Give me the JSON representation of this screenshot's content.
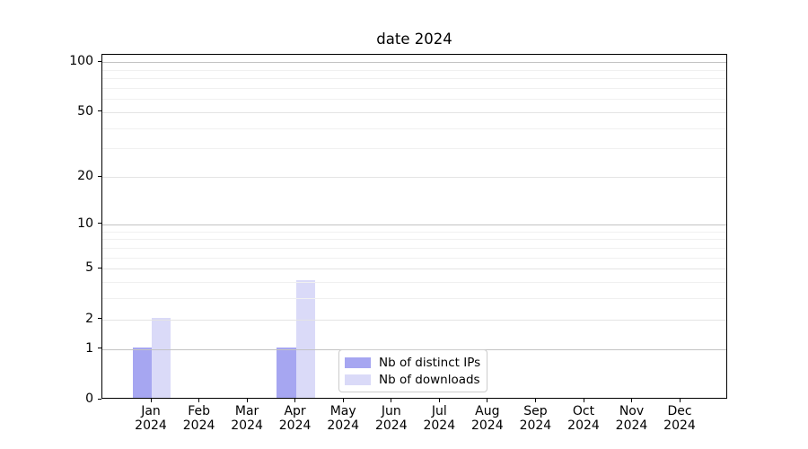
{
  "chart_data": {
    "type": "bar",
    "title": "date 2024",
    "months": [
      "Jan",
      "Feb",
      "Mar",
      "Apr",
      "May",
      "Jun",
      "Jul",
      "Aug",
      "Sep",
      "Oct",
      "Nov",
      "Dec"
    ],
    "year_label": "2024",
    "series": [
      {
        "name": "Nb of distinct IPs",
        "color": "#a6a6f1",
        "values": [
          1,
          0,
          0,
          1,
          0,
          0,
          0,
          0,
          0,
          0,
          0,
          0
        ]
      },
      {
        "name": "Nb of downloads",
        "color": "#dadaf8",
        "values": [
          2,
          0,
          0,
          4,
          0,
          0,
          0,
          0,
          0,
          0,
          0,
          0
        ]
      }
    ],
    "yscale": "log1p",
    "ylim": [
      0,
      112
    ],
    "y_major_ticks": [
      0,
      1,
      2,
      5,
      10,
      20,
      50,
      100
    ],
    "emphasized_gridlines": [
      1,
      10,
      100
    ],
    "minor_gridlines": [
      3,
      4,
      6,
      7,
      8,
      9,
      30,
      40,
      60,
      70,
      80,
      90
    ],
    "grid": "horizontal",
    "legend": {
      "position": "lower center",
      "items": [
        "Nb of distinct IPs",
        "Nb of downloads"
      ]
    },
    "colors": {
      "axis": "#000000",
      "grid_major": "#c3c3c3",
      "grid_light": "#e4e4e4",
      "grid_minor": "#f0f0f0",
      "background": "#ffffff"
    }
  }
}
